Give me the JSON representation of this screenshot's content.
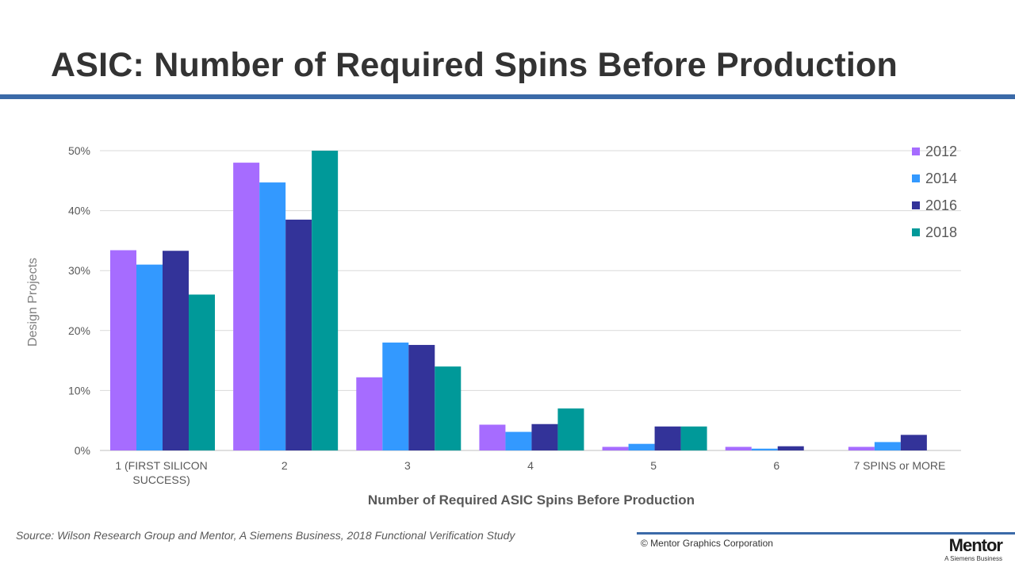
{
  "page": {
    "title": "ASIC: Number of Required Spins Before Production",
    "source": "Source:  Wilson Research Group and Mentor, A Siemens Business, 2018 Functional Verification Study",
    "copyright": "© Mentor Graphics Corporation",
    "logo": {
      "word": "Mentor",
      "tagline": "A Siemens Business"
    },
    "accent_color": "#3b6aa8"
  },
  "chart_data": {
    "type": "bar",
    "categories": [
      [
        "1 (FIRST SILICON",
        "SUCCESS)"
      ],
      [
        "2"
      ],
      [
        "3"
      ],
      [
        "4"
      ],
      [
        "5"
      ],
      [
        "6"
      ],
      [
        "7 SPINS or MORE"
      ]
    ],
    "series": [
      {
        "name": "2012",
        "color": "#a66cff",
        "values": [
          33.4,
          48.0,
          12.2,
          4.3,
          0.6,
          0.6,
          0.6
        ]
      },
      {
        "name": "2014",
        "color": "#3399ff",
        "values": [
          31.0,
          44.7,
          18.0,
          3.1,
          1.1,
          0.3,
          1.4
        ]
      },
      {
        "name": "2016",
        "color": "#333399",
        "values": [
          33.3,
          38.5,
          17.6,
          4.4,
          4.0,
          0.7,
          2.6
        ]
      },
      {
        "name": "2018",
        "color": "#009999",
        "values": [
          26.0,
          50.0,
          14.0,
          7.0,
          4.0,
          0.0,
          0.0
        ]
      }
    ],
    "xlabel": "Number of Required ASIC Spins Before Production",
    "ylabel": "Design Projects",
    "ylim": [
      0,
      50
    ],
    "yticks": [
      0,
      10,
      20,
      30,
      40,
      50
    ],
    "ytick_labels": [
      "0%",
      "10%",
      "20%",
      "30%",
      "40%",
      "50%"
    ],
    "grid": true,
    "legend_position": "top-right"
  }
}
